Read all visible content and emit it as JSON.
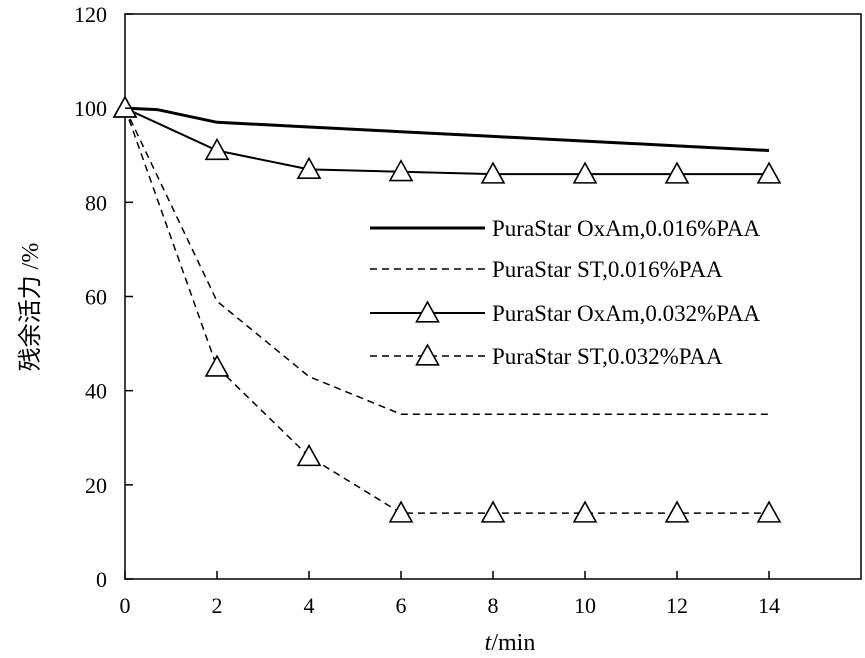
{
  "chart_data": {
    "type": "line",
    "title": "",
    "xlabel_italic": "t",
    "xlabel_rest": "/min",
    "ylabel": "残余活力 /%",
    "xlim": [
      0,
      16
    ],
    "ylim": [
      0,
      120
    ],
    "xticks": [
      0,
      2,
      4,
      6,
      8,
      10,
      12,
      14
    ],
    "yticks": [
      0,
      20,
      40,
      60,
      80,
      100,
      120
    ],
    "grid": false,
    "legend_position": "right-middle",
    "series": [
      {
        "name": "PuraStar OxAm,0.016%PAA",
        "line_style": "solid-thick",
        "marker": "none",
        "x": [
          0,
          0.7,
          2,
          4,
          6,
          8,
          10,
          12,
          14
        ],
        "y": [
          100,
          99.7,
          97,
          96,
          95,
          94,
          93,
          92,
          91
        ]
      },
      {
        "name": "PuraStar ST,0.016%PAA",
        "line_style": "dashed",
        "marker": "none",
        "x": [
          0,
          2,
          4,
          6,
          8,
          10,
          12,
          14
        ],
        "y": [
          100,
          59,
          43,
          35,
          35,
          35,
          35,
          35
        ]
      },
      {
        "name": "PuraStar OxAm,0.032%PAA",
        "line_style": "solid",
        "marker": "triangle",
        "x": [
          0,
          2,
          4,
          6,
          8,
          10,
          12,
          14
        ],
        "y": [
          100,
          91,
          87,
          86.5,
          86,
          86,
          86,
          86
        ]
      },
      {
        "name": "PuraStar ST,0.032%PAA",
        "line_style": "dashed",
        "marker": "triangle",
        "x": [
          0,
          2,
          4,
          6,
          8,
          10,
          12,
          14
        ],
        "y": [
          100,
          45,
          26,
          14,
          14,
          14,
          14,
          14
        ]
      }
    ],
    "colors": {
      "line": "#000000",
      "marker_fill": "#ffffff"
    }
  }
}
